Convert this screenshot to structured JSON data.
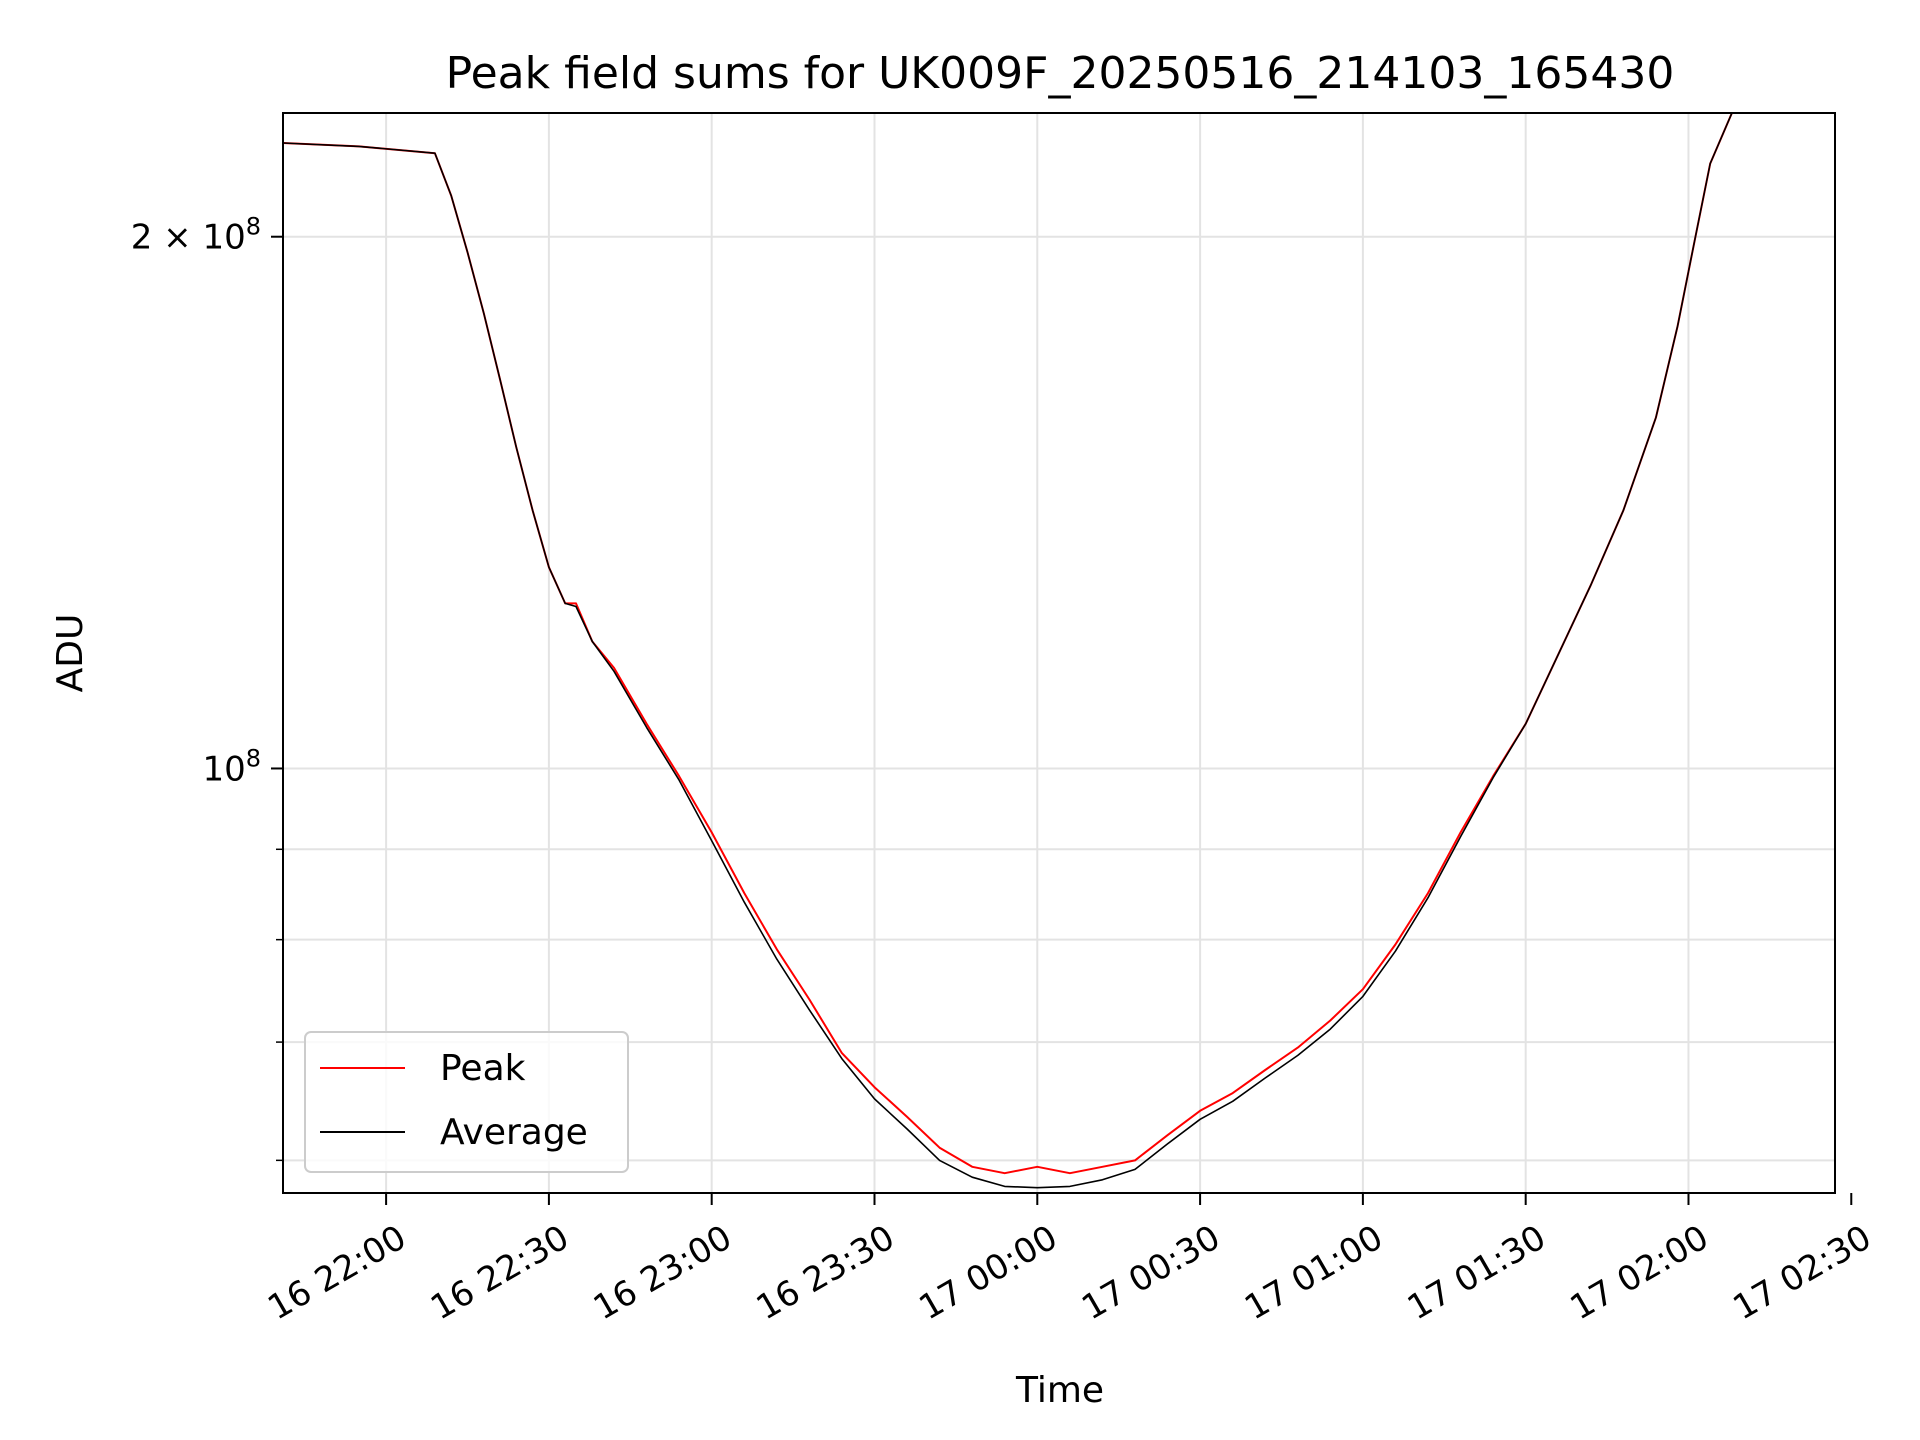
{
  "chart_data": {
    "type": "line",
    "title": "Peak field sums for UK009F_20250516_214103_165430",
    "xlabel": "Time",
    "ylabel": "ADU",
    "y_scale": "log",
    "grid": true,
    "legend_position": "lower-left",
    "xlim": [
      "2025-05-16 21:41",
      "2025-05-17 02:27"
    ],
    "ylim": [
      57500000,
      235000000
    ],
    "x_ticks": [
      {
        "value": "2025-05-16 22:00",
        "label": "16 22:00"
      },
      {
        "value": "2025-05-16 22:30",
        "label": "16 22:30"
      },
      {
        "value": "2025-05-16 23:00",
        "label": "16 23:00"
      },
      {
        "value": "2025-05-16 23:30",
        "label": "16 23:30"
      },
      {
        "value": "2025-05-17 00:00",
        "label": "17 00:00"
      },
      {
        "value": "2025-05-17 00:30",
        "label": "17 00:30"
      },
      {
        "value": "2025-05-17 01:00",
        "label": "17 01:00"
      },
      {
        "value": "2025-05-17 01:30",
        "label": "17 01:30"
      },
      {
        "value": "2025-05-17 02:00",
        "label": "17 02:00"
      },
      {
        "value": "2025-05-17 02:30",
        "label": "17 02:30"
      }
    ],
    "y_major_ticks": [
      {
        "value": 100000000,
        "base": "10",
        "exp": "8",
        "coef": ""
      },
      {
        "value": 200000000,
        "base": "10",
        "exp": "8",
        "coef": "2 × "
      }
    ],
    "y_minor_ticks": [
      60000000,
      70000000,
      80000000,
      90000000
    ],
    "series": [
      {
        "name": "Peak",
        "color": "#ff0000",
        "x": [
          "2025-05-16 21:41",
          "2025-05-16 21:55",
          "2025-05-16 22:09",
          "2025-05-16 22:12",
          "2025-05-16 22:15",
          "2025-05-16 22:18",
          "2025-05-16 22:21",
          "2025-05-16 22:24",
          "2025-05-16 22:27",
          "2025-05-16 22:30",
          "2025-05-16 22:33",
          "2025-05-16 22:35",
          "2025-05-16 22:38",
          "2025-05-16 22:42",
          "2025-05-16 22:48",
          "2025-05-16 22:54",
          "2025-05-16 23:00",
          "2025-05-16 23:06",
          "2025-05-16 23:12",
          "2025-05-16 23:18",
          "2025-05-16 23:24",
          "2025-05-16 23:30",
          "2025-05-16 23:36",
          "2025-05-16 23:42",
          "2025-05-16 23:48",
          "2025-05-16 23:54",
          "2025-05-17 00:00",
          "2025-05-17 00:06",
          "2025-05-17 00:12",
          "2025-05-17 00:18",
          "2025-05-17 00:24",
          "2025-05-17 00:30",
          "2025-05-17 00:36",
          "2025-05-17 00:42",
          "2025-05-17 00:48",
          "2025-05-17 00:54",
          "2025-05-17 01:00",
          "2025-05-17 01:06",
          "2025-05-17 01:12",
          "2025-05-17 01:18",
          "2025-05-17 01:24",
          "2025-05-17 01:30",
          "2025-05-17 01:36",
          "2025-05-17 01:42",
          "2025-05-17 01:48",
          "2025-05-17 01:54",
          "2025-05-17 01:58",
          "2025-05-17 02:01",
          "2025-05-17 02:04",
          "2025-05-17 02:08",
          "2025-05-17 02:27"
        ],
        "values": [
          226000000,
          225000000,
          223000000,
          211000000,
          196000000,
          181000000,
          166000000,
          152000000,
          140000000,
          130000000,
          124000000,
          124000000,
          118000000,
          114000000,
          106000000,
          99000000,
          92000000,
          85000000,
          79000000,
          74000000,
          69000000,
          66000000,
          63500000,
          61000000,
          59500000,
          59000000,
          59500000,
          59000000,
          59500000,
          60000000,
          62000000,
          64000000,
          65500000,
          67500000,
          69500000,
          72000000,
          75000000,
          79500000,
          85000000,
          92000000,
          99000000,
          106000000,
          116000000,
          127000000,
          140000000,
          158000000,
          178000000,
          198000000,
          220000000,
          235000000,
          235000000
        ]
      },
      {
        "name": "Average",
        "color": "#000000",
        "x": [
          "2025-05-16 21:41",
          "2025-05-16 21:55",
          "2025-05-16 22:09",
          "2025-05-16 22:12",
          "2025-05-16 22:15",
          "2025-05-16 22:18",
          "2025-05-16 22:21",
          "2025-05-16 22:24",
          "2025-05-16 22:27",
          "2025-05-16 22:30",
          "2025-05-16 22:33",
          "2025-05-16 22:35",
          "2025-05-16 22:38",
          "2025-05-16 22:42",
          "2025-05-16 22:48",
          "2025-05-16 22:54",
          "2025-05-16 23:00",
          "2025-05-16 23:06",
          "2025-05-16 23:12",
          "2025-05-16 23:18",
          "2025-05-16 23:24",
          "2025-05-16 23:30",
          "2025-05-16 23:36",
          "2025-05-16 23:42",
          "2025-05-16 23:48",
          "2025-05-16 23:54",
          "2025-05-17 00:00",
          "2025-05-17 00:06",
          "2025-05-17 00:12",
          "2025-05-17 00:18",
          "2025-05-17 00:24",
          "2025-05-17 00:30",
          "2025-05-17 00:36",
          "2025-05-17 00:42",
          "2025-05-17 00:48",
          "2025-05-17 00:54",
          "2025-05-17 01:00",
          "2025-05-17 01:06",
          "2025-05-17 01:12",
          "2025-05-17 01:18",
          "2025-05-17 01:24",
          "2025-05-17 01:30",
          "2025-05-17 01:36",
          "2025-05-17 01:42",
          "2025-05-17 01:48",
          "2025-05-17 01:54",
          "2025-05-17 01:58",
          "2025-05-17 02:01",
          "2025-05-17 02:04",
          "2025-05-17 02:08",
          "2025-05-17 02:27"
        ],
        "values": [
          226000000,
          225000000,
          223000000,
          211000000,
          196000000,
          181000000,
          166000000,
          152000000,
          140000000,
          130000000,
          124000000,
          123500000,
          118000000,
          113500000,
          105500000,
          98500000,
          91000000,
          84000000,
          78000000,
          73000000,
          68500000,
          65000000,
          62500000,
          60000000,
          58700000,
          58000000,
          57900000,
          58000000,
          58500000,
          59300000,
          61300000,
          63300000,
          64800000,
          66800000,
          68800000,
          71200000,
          74300000,
          78800000,
          84500000,
          91500000,
          98800000,
          106000000,
          116000000,
          127000000,
          140000000,
          158000000,
          178000000,
          198000000,
          220000000,
          235000000,
          235000000
        ]
      }
    ]
  }
}
